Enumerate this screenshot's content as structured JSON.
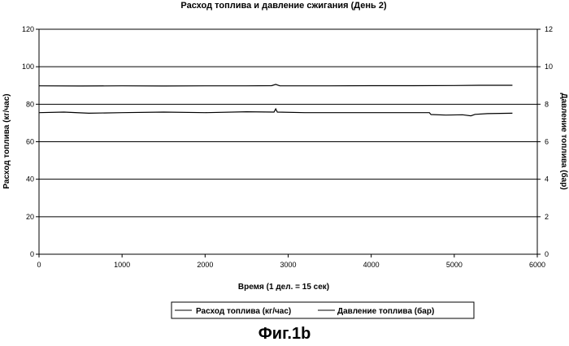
{
  "chart_data": {
    "type": "line",
    "title": "Расход топлива и давление сжигания (День 2)",
    "xlabel": "Время (1 дел. = 15 сек)",
    "ylabel_left": "Расход топлива (кг/час)",
    "ylabel_right": "Давление топлива (бар)",
    "xlim": [
      0,
      6000
    ],
    "ylim_left": [
      0,
      120
    ],
    "ylim_right": [
      0,
      12
    ],
    "x_ticks": [
      "0",
      "1000",
      "2000",
      "3000",
      "4000",
      "5000",
      "6000"
    ],
    "y_ticks_left": [
      "0",
      "20",
      "40",
      "60",
      "80",
      "100",
      "120"
    ],
    "y_ticks_right": [
      "0",
      "2",
      "4",
      "6",
      "8",
      "10",
      "12"
    ],
    "grid": "horizontal",
    "legend_position": "bottom",
    "series": [
      {
        "name": "Расход топлива (кг/час)",
        "axis": "left",
        "color": "#000000",
        "points": [
          [
            0,
            89.8
          ],
          [
            500,
            89.7
          ],
          [
            1000,
            89.8
          ],
          [
            1500,
            89.7
          ],
          [
            2000,
            89.8
          ],
          [
            2500,
            89.8
          ],
          [
            2800,
            89.9
          ],
          [
            2850,
            90.6
          ],
          [
            2900,
            89.8
          ],
          [
            3500,
            89.8
          ],
          [
            4000,
            89.9
          ],
          [
            4500,
            89.9
          ],
          [
            5000,
            90.0
          ],
          [
            5300,
            90.1
          ],
          [
            5700,
            90.1
          ]
        ]
      },
      {
        "name": "Давление топлива (бар)",
        "axis": "right",
        "color": "#000000",
        "points": [
          [
            0,
            7.55
          ],
          [
            300,
            7.58
          ],
          [
            600,
            7.52
          ],
          [
            1000,
            7.55
          ],
          [
            1500,
            7.58
          ],
          [
            2000,
            7.55
          ],
          [
            2500,
            7.6
          ],
          [
            2830,
            7.58
          ],
          [
            2850,
            7.75
          ],
          [
            2870,
            7.58
          ],
          [
            3200,
            7.55
          ],
          [
            3600,
            7.55
          ],
          [
            4000,
            7.55
          ],
          [
            4400,
            7.55
          ],
          [
            4700,
            7.55
          ],
          [
            4720,
            7.45
          ],
          [
            4900,
            7.42
          ],
          [
            5100,
            7.44
          ],
          [
            5200,
            7.38
          ],
          [
            5250,
            7.46
          ],
          [
            5400,
            7.5
          ],
          [
            5700,
            7.52
          ]
        ]
      }
    ]
  },
  "figure_label": "Фиг.1b"
}
